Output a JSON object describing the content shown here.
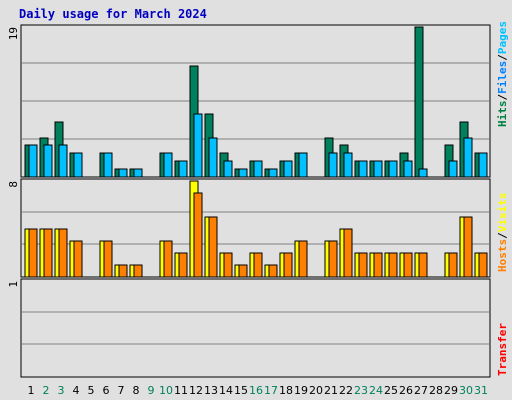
{
  "title": "Daily usage for March 2024",
  "side_labels": {
    "top": [
      {
        "text": "Hits",
        "color": "#008040"
      },
      {
        "text": "/",
        "color": "#000000"
      },
      {
        "text": "Files",
        "color": "#0080ff"
      },
      {
        "text": "/",
        "color": "#000000"
      },
      {
        "text": "Pages",
        "color": "#00c0ff"
      }
    ],
    "middle": [
      {
        "text": "Hosts",
        "color": "#ff8000"
      },
      {
        "text": "/",
        "color": "#000000"
      },
      {
        "text": "Visits",
        "color": "#ffff00"
      }
    ],
    "bottom": [
      {
        "text": "Transfer",
        "color": "#ff0000"
      }
    ]
  },
  "colors": {
    "hits": "#00805c",
    "files": "#0040ff",
    "pages": "#00c0ff",
    "visits": "#ffff00",
    "hosts": "#ff8000",
    "weekend_day": "#00805c",
    "weekday": "#000000",
    "grid": "#7f7f7f",
    "panel_bg": "#e0e0e0"
  },
  "chart_data": {
    "type": "bar",
    "x": [
      "1",
      "2",
      "3",
      "4",
      "5",
      "6",
      "7",
      "8",
      "9",
      "10",
      "11",
      "12",
      "13",
      "14",
      "15",
      "16",
      "17",
      "18",
      "19",
      "20",
      "21",
      "22",
      "23",
      "24",
      "25",
      "26",
      "27",
      "28",
      "29",
      "30",
      "31"
    ],
    "weekend_days": [
      "2",
      "3",
      "9",
      "10",
      "16",
      "17",
      "23",
      "24",
      "30",
      "31"
    ],
    "panels": [
      {
        "name": "hits-files-pages",
        "ymax_label": "19",
        "ymax": 19,
        "series": [
          {
            "key": "hits",
            "values": [
              4,
              5,
              7,
              3,
              0,
              3,
              1,
              1,
              0,
              3,
              2,
              14,
              8,
              3,
              1,
              2,
              1,
              2,
              3,
              0,
              5,
              4,
              2,
              2,
              2,
              3,
              19,
              0,
              4,
              7,
              3
            ]
          },
          {
            "key": "pages",
            "values": [
              4,
              4,
              4,
              3,
              0,
              3,
              1,
              1,
              0,
              3,
              2,
              8,
              5,
              2,
              1,
              2,
              1,
              2,
              3,
              0,
              3,
              3,
              2,
              2,
              2,
              2,
              1,
              0,
              2,
              5,
              3
            ]
          }
        ]
      },
      {
        "name": "hosts-visits",
        "ymax_label": "8",
        "ymax": 8,
        "series": [
          {
            "key": "visits",
            "values": [
              4,
              4,
              4,
              3,
              0,
              3,
              1,
              1,
              0,
              3,
              2,
              8,
              5,
              2,
              1,
              2,
              1,
              2,
              3,
              0,
              3,
              4,
              2,
              2,
              2,
              2,
              2,
              0,
              2,
              5,
              2
            ]
          },
          {
            "key": "hosts",
            "values": [
              4,
              4,
              4,
              3,
              0,
              3,
              1,
              1,
              0,
              3,
              2,
              7,
              5,
              2,
              1,
              2,
              1,
              2,
              3,
              0,
              3,
              4,
              2,
              2,
              2,
              2,
              2,
              0,
              2,
              5,
              2
            ]
          }
        ]
      },
      {
        "name": "transfer",
        "ymax_label": "1",
        "ymax": 1,
        "series": [
          {
            "key": "transfer",
            "values": [
              0,
              0,
              0,
              0,
              0,
              0,
              0,
              0,
              0,
              0,
              0,
              0,
              0,
              0,
              0,
              0,
              0,
              0,
              0,
              0,
              0,
              0,
              0,
              0,
              0,
              0,
              0,
              0,
              0,
              0,
              0
            ]
          }
        ]
      }
    ]
  }
}
